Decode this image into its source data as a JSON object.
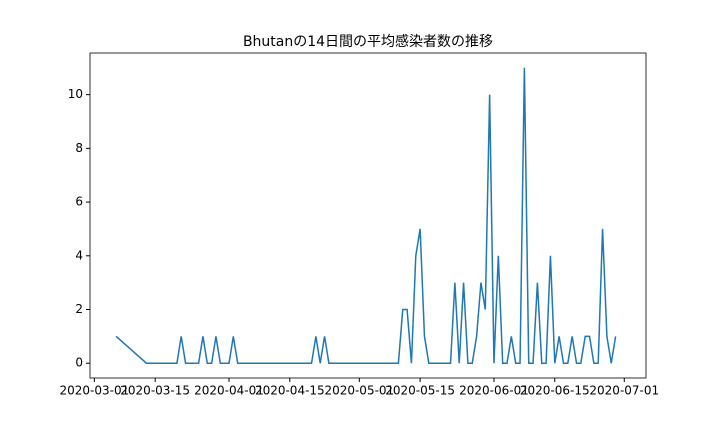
{
  "chart_data": {
    "type": "line",
    "title": "Bhutanの14日間の平均感染者数の推移",
    "x": [
      "2020-03-06",
      "2020-03-13",
      "2020-03-14",
      "2020-03-15",
      "2020-03-16",
      "2020-03-17",
      "2020-03-18",
      "2020-03-19",
      "2020-03-20",
      "2020-03-21",
      "2020-03-22",
      "2020-03-23",
      "2020-03-24",
      "2020-03-25",
      "2020-03-26",
      "2020-03-27",
      "2020-03-28",
      "2020-03-29",
      "2020-03-30",
      "2020-03-31",
      "2020-04-01",
      "2020-04-02",
      "2020-04-03",
      "2020-04-04",
      "2020-04-05",
      "2020-04-06",
      "2020-04-07",
      "2020-04-08",
      "2020-04-09",
      "2020-04-10",
      "2020-04-11",
      "2020-04-12",
      "2020-04-13",
      "2020-04-14",
      "2020-04-15",
      "2020-04-16",
      "2020-04-17",
      "2020-04-18",
      "2020-04-19",
      "2020-04-20",
      "2020-04-21",
      "2020-04-22",
      "2020-04-23",
      "2020-04-24",
      "2020-04-25",
      "2020-04-26",
      "2020-04-27",
      "2020-04-28",
      "2020-04-29",
      "2020-04-30",
      "2020-05-01",
      "2020-05-02",
      "2020-05-03",
      "2020-05-04",
      "2020-05-05",
      "2020-05-06",
      "2020-05-07",
      "2020-05-08",
      "2020-05-09",
      "2020-05-10",
      "2020-05-11",
      "2020-05-12",
      "2020-05-13",
      "2020-05-14",
      "2020-05-15",
      "2020-05-16",
      "2020-05-17",
      "2020-05-18",
      "2020-05-19",
      "2020-05-20",
      "2020-05-21",
      "2020-05-22",
      "2020-05-23",
      "2020-05-24",
      "2020-05-25",
      "2020-05-26",
      "2020-05-27",
      "2020-05-28",
      "2020-05-29",
      "2020-05-30",
      "2020-05-31",
      "2020-06-01",
      "2020-06-02",
      "2020-06-03",
      "2020-06-04",
      "2020-06-05",
      "2020-06-06",
      "2020-06-07",
      "2020-06-08",
      "2020-06-09",
      "2020-06-10",
      "2020-06-11",
      "2020-06-12",
      "2020-06-13",
      "2020-06-14",
      "2020-06-15",
      "2020-06-16",
      "2020-06-17",
      "2020-06-18",
      "2020-06-19",
      "2020-06-20",
      "2020-06-21",
      "2020-06-22",
      "2020-06-23",
      "2020-06-24",
      "2020-06-25",
      "2020-06-26",
      "2020-06-27",
      "2020-06-28",
      "2020-06-29"
    ],
    "series": [
      {
        "color": "#1f77b4",
        "values": [
          1,
          0,
          0,
          0,
          0,
          0,
          0,
          0,
          0,
          1,
          0,
          0,
          0,
          0,
          1,
          0,
          0,
          1,
          0,
          0,
          0,
          1,
          0,
          0,
          0,
          0,
          0,
          0,
          0,
          0,
          0,
          0,
          0,
          0,
          0,
          0,
          0,
          0,
          0,
          0,
          1,
          0,
          1,
          0,
          0,
          0,
          0,
          0,
          0,
          0,
          0,
          0,
          0,
          0,
          0,
          0,
          0,
          0,
          0,
          0,
          2,
          2,
          0,
          4,
          5,
          1,
          0,
          0,
          0,
          0,
          0,
          0,
          3,
          0,
          3,
          0,
          0,
          1,
          3,
          2,
          10,
          0,
          4,
          0,
          0,
          1,
          0,
          0,
          11,
          0,
          0,
          3,
          0,
          0,
          4,
          0,
          1,
          0,
          0,
          1,
          0,
          0,
          1,
          1,
          0,
          0,
          5,
          1,
          0,
          1
        ]
      }
    ],
    "xlim": [
      "2020-02-29",
      "2020-07-06"
    ],
    "xticks": [
      "2020-03-01",
      "2020-03-15",
      "2020-04-01",
      "2020-04-15",
      "2020-05-01",
      "2020-05-15",
      "2020-06-01",
      "2020-06-15",
      "2020-07-01"
    ],
    "ylim": [
      -0.55,
      11.55
    ],
    "yticks": [
      0,
      2,
      4,
      6,
      8,
      10
    ]
  }
}
